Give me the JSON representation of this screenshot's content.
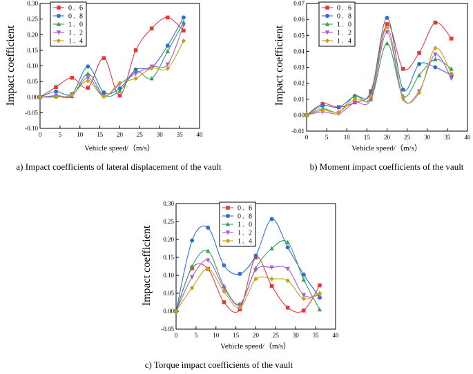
{
  "chart_data": [
    {
      "type": "line",
      "id": "a",
      "caption": "a) Impact coefficients of lateral displacement of the vault",
      "xlabel": "Vehicle speed/（m/s）",
      "ylabel": "Impact coefficient",
      "xlim": [
        0,
        40
      ],
      "ylim": [
        -0.1,
        0.3
      ],
      "xticks": [
        0,
        5,
        10,
        15,
        20,
        25,
        30,
        35,
        40
      ],
      "xtick_labels": [
        "0",
        "5",
        "10",
        "15",
        "20",
        "25",
        "30",
        "35",
        "40"
      ],
      "yticks": [
        -0.1,
        -0.05,
        0.0,
        0.05,
        0.1,
        0.15,
        0.2,
        0.25,
        0.3
      ],
      "ytick_labels": [
        "-0.10",
        "-0.05",
        "0.00",
        "0.05",
        "0.10",
        "0.15",
        "0.20",
        "0.25",
        "0.30"
      ],
      "legend_position": "top-left",
      "x": [
        0,
        4,
        8,
        12,
        16,
        20,
        24,
        28,
        32,
        36
      ],
      "series": [
        {
          "name": "0. 6",
          "color": "#e8363c",
          "marker": "square",
          "values": [
            0.0,
            0.032,
            0.062,
            0.03,
            0.125,
            0.005,
            0.15,
            0.22,
            0.255,
            0.213
          ]
        },
        {
          "name": "0. 8",
          "color": "#2e6fd1",
          "marker": "circle",
          "values": [
            0.0,
            0.018,
            0.01,
            0.098,
            0.015,
            0.028,
            0.088,
            0.095,
            0.165,
            0.255
          ]
        },
        {
          "name": "1. 0",
          "color": "#2ca05a",
          "marker": "triangle",
          "values": [
            0.0,
            0.003,
            0.003,
            0.075,
            0.005,
            0.02,
            0.082,
            0.06,
            0.147,
            0.24
          ]
        },
        {
          "name": "1. 2",
          "color": "#a95bd6",
          "marker": "tri-down",
          "values": [
            0.0,
            0.005,
            0.005,
            0.062,
            0.003,
            0.042,
            0.075,
            0.098,
            0.105,
            0.23
          ]
        },
        {
          "name": "1. 4",
          "color": "#c9a010",
          "marker": "diamond",
          "values": [
            0.0,
            0.0,
            0.008,
            0.052,
            0.002,
            0.045,
            0.06,
            0.093,
            0.092,
            0.18
          ]
        }
      ]
    },
    {
      "type": "line",
      "id": "b",
      "caption": "b) Moment impact coefficients of the vault",
      "xlabel": "Vehicle speed/（m/s）",
      "ylabel": "Impact coefficient",
      "xlim": [
        0,
        40
      ],
      "ylim": [
        -0.01,
        0.07
      ],
      "xticks": [
        0,
        5,
        10,
        15,
        20,
        25,
        30,
        35,
        40
      ],
      "xtick_labels": [
        "0",
        "5",
        "10",
        "15",
        "20",
        "25",
        "30",
        "35",
        "40"
      ],
      "yticks": [
        -0.01,
        0.0,
        0.01,
        0.02,
        0.03,
        0.04,
        0.05,
        0.06,
        0.07
      ],
      "ytick_labels": [
        "-0.01",
        "0.00",
        "0.01",
        "0.02",
        "0.03",
        "0.04",
        "0.05",
        "0.06",
        "0.07"
      ],
      "legend_position": "top-left",
      "x": [
        0,
        4,
        8,
        12,
        16,
        20,
        24,
        28,
        32,
        36
      ],
      "series": [
        {
          "name": "0. 6",
          "color": "#e8363c",
          "marker": "square",
          "values": [
            0.0,
            0.007,
            0.005,
            0.008,
            0.015,
            0.057,
            0.029,
            0.039,
            0.058,
            0.048
          ]
        },
        {
          "name": "0. 8",
          "color": "#2e6fd1",
          "marker": "circle",
          "values": [
            0.0,
            0.006,
            0.005,
            0.012,
            0.014,
            0.061,
            0.016,
            0.032,
            0.03,
            0.025
          ]
        },
        {
          "name": "1. 0",
          "color": "#2ca05a",
          "marker": "triangle",
          "values": [
            0.0,
            0.004,
            0.002,
            0.012,
            0.01,
            0.045,
            0.012,
            0.025,
            0.035,
            0.029
          ]
        },
        {
          "name": "1. 2",
          "color": "#a95bd6",
          "marker": "tri-down",
          "values": [
            0.0,
            0.002,
            0.001,
            0.008,
            0.01,
            0.052,
            0.01,
            0.015,
            0.038,
            0.023
          ]
        },
        {
          "name": "1. 4",
          "color": "#c9a010",
          "marker": "diamond",
          "values": [
            0.0,
            0.003,
            0.002,
            0.01,
            0.012,
            0.055,
            0.011,
            0.014,
            0.042,
            0.026
          ]
        }
      ]
    },
    {
      "type": "line",
      "id": "c",
      "caption": "c) Torque impact coefficients of the vault",
      "xlabel": "Vehicle speed/（m/s）",
      "ylabel": "Impact coefficient",
      "xlim": [
        0,
        40
      ],
      "ylim": [
        -0.05,
        0.3
      ],
      "xticks": [
        0,
        5,
        10,
        15,
        20,
        25,
        30,
        35,
        40
      ],
      "xtick_labels": [
        "0",
        "5",
        "10",
        "15",
        "20",
        "25",
        "30",
        "35",
        "40"
      ],
      "yticks": [
        -0.05,
        0.0,
        0.05,
        0.1,
        0.15,
        0.2,
        0.25,
        0.3
      ],
      "ytick_labels": [
        "-0.05",
        "0.00",
        "0.05",
        "0.10",
        "0.15",
        "0.20",
        "0.25",
        "0.30"
      ],
      "legend_position": "top-center",
      "x": [
        0,
        4,
        8,
        12,
        16,
        20,
        24,
        28,
        32,
        36
      ],
      "series": [
        {
          "name": "0. 6",
          "color": "#e8363c",
          "marker": "square",
          "values": [
            0.0,
            0.12,
            0.118,
            0.025,
            0.005,
            0.15,
            0.07,
            0.01,
            0.002,
            0.072
          ]
        },
        {
          "name": "0. 8",
          "color": "#2e6fd1",
          "marker": "circle",
          "values": [
            0.0,
            0.197,
            0.233,
            0.128,
            0.104,
            0.155,
            0.257,
            0.178,
            0.102,
            0.038
          ]
        },
        {
          "name": "1. 0",
          "color": "#2ca05a",
          "marker": "triangle",
          "values": [
            0.0,
            0.125,
            0.168,
            0.07,
            0.02,
            0.12,
            0.175,
            0.192,
            0.088,
            0.005
          ]
        },
        {
          "name": "1. 2",
          "color": "#a95bd6",
          "marker": "tri-down",
          "values": [
            0.0,
            0.095,
            0.142,
            0.065,
            0.018,
            0.115,
            0.122,
            0.118,
            0.045,
            0.045
          ]
        },
        {
          "name": "1. 4",
          "color": "#c9a010",
          "marker": "diamond",
          "values": [
            0.0,
            0.065,
            0.118,
            0.055,
            0.01,
            0.09,
            0.09,
            0.085,
            0.035,
            0.05
          ]
        }
      ]
    }
  ]
}
